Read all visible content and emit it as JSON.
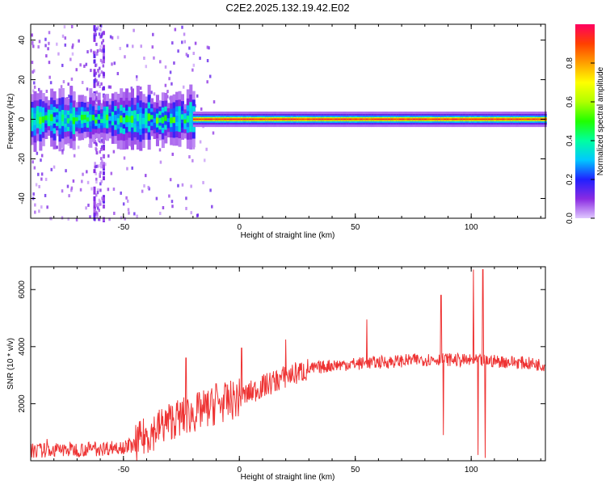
{
  "title": "C2E2.2025.132.19.42.E02",
  "chart_data": [
    {
      "type": "heatmap",
      "xlabel": "Height of straight line (km)",
      "ylabel": "Frequency (Hz)",
      "xlim": [
        -90,
        132
      ],
      "ylim": [
        -50,
        48
      ],
      "xticks": [
        -50,
        0,
        50,
        100
      ],
      "yticks": [
        -40,
        -20,
        0,
        20,
        40
      ],
      "colorbar": {
        "label": "Normalized spectral amplitude",
        "range": [
          0,
          1
        ],
        "ticks": [
          0.0,
          0.2,
          0.4,
          0.6,
          0.8
        ],
        "stops": [
          "#e0c8ff",
          "#8a2be2",
          "#2020ff",
          "#00c8ff",
          "#00ffa0",
          "#20ff00",
          "#b0ff00",
          "#ffff00",
          "#ffa000",
          "#ff4000",
          "#ff0060"
        ]
      },
      "band": {
        "center_hz": 0,
        "segments": [
          {
            "x": [
              -90,
              -20
            ],
            "half_width_hz": 4,
            "peak_amplitude": 0.45
          },
          {
            "x": [
              -20,
              132
            ],
            "half_width_hz": 1.5,
            "peak_amplitude": 0.95
          }
        ],
        "scatter_region_x": [
          -90,
          -10
        ],
        "scatter_columns_x": [
          -63,
          -59
        ]
      }
    },
    {
      "type": "line",
      "xlabel": "Height of straight line (km)",
      "ylabel": "SNR (10 * v/v)",
      "xlim": [
        -90,
        132
      ],
      "ylim": [
        0,
        6800
      ],
      "xticks": [
        -50,
        0,
        50,
        100
      ],
      "yticks": [
        2000,
        4000,
        6000
      ],
      "color": "#ee3333",
      "trend": {
        "x": [
          -90,
          -60,
          -45,
          -40,
          -30,
          -20,
          -10,
          0,
          10,
          20,
          30,
          40,
          60,
          80,
          90,
          100,
          108,
          120,
          132
        ],
        "y": [
          350,
          420,
          550,
          900,
          1400,
          1650,
          1950,
          2200,
          2600,
          2950,
          3200,
          3350,
          3450,
          3550,
          3550,
          3500,
          3500,
          3450,
          3350
        ]
      },
      "spikes": [
        {
          "x": -23,
          "y": 3600
        },
        {
          "x": -10,
          "y": 2700
        },
        {
          "x": 1,
          "y": 3950
        },
        {
          "x": 20,
          "y": 4250
        },
        {
          "x": 55,
          "y": 4950
        },
        {
          "x": 87,
          "y": 5800
        },
        {
          "x": 88,
          "y": 900
        },
        {
          "x": 101,
          "y": 6700
        },
        {
          "x": 103,
          "y": 200
        },
        {
          "x": 105,
          "y": 6700
        },
        {
          "x": 106,
          "y": 100
        }
      ]
    }
  ]
}
